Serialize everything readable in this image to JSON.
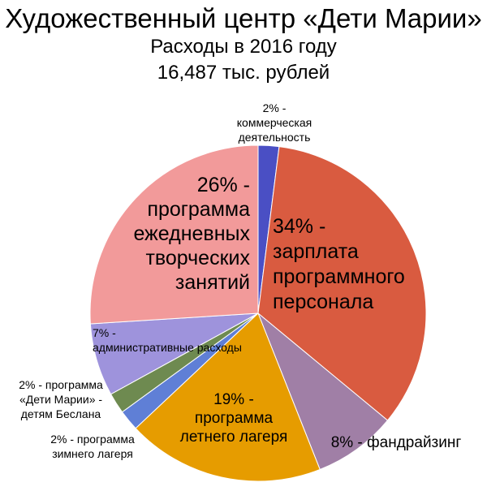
{
  "chart_data": {
    "type": "pie",
    "title": "Художественный центр «Дети Марии»",
    "subtitle": "Расходы в 2016 году",
    "total": "16,487 тыс. рублей",
    "slices": [
      {
        "value": 2,
        "color": "#4a4fc4",
        "label_lines": [
          "2% -",
          "коммерческая",
          "деятельность"
        ]
      },
      {
        "value": 34,
        "color": "#d95b40",
        "label_lines": [
          "34% -",
          "зарплата",
          "программного",
          "персонала"
        ]
      },
      {
        "value": 8,
        "color": "#a07fa6",
        "label_lines": [
          "8% - фандрайзинг"
        ]
      },
      {
        "value": 19,
        "color": "#e69c00",
        "label_lines": [
          "19% -",
          "программа",
          "летнего лагеря"
        ]
      },
      {
        "value": 2,
        "color": "#5f7fd6",
        "label_lines": [
          "2% - программа",
          "зимнего лагеря"
        ]
      },
      {
        "value": 2,
        "color": "#6e8a50",
        "label_lines": [
          "2% - программа",
          "«Дети Марии» -",
          "детям Беслана"
        ]
      },
      {
        "value": 7,
        "color": "#9e93dc",
        "label_lines": [
          "7% -",
          "административные расходы"
        ]
      },
      {
        "value": 26,
        "color": "#f29a9a",
        "label_lines": [
          "26% -",
          "программа",
          "ежедневных",
          "творческих",
          "занятий"
        ]
      }
    ]
  }
}
